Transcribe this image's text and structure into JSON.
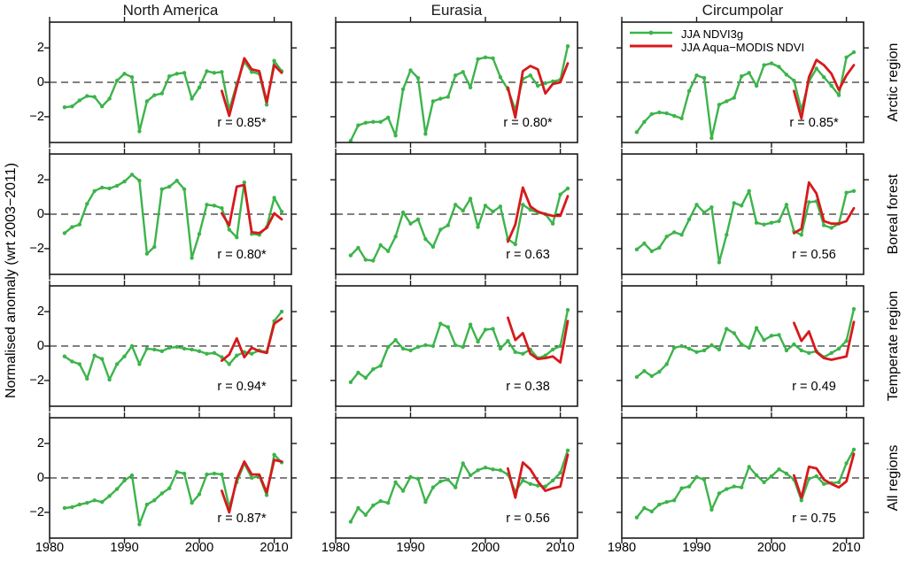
{
  "figure": {
    "title_columns": [
      "North America",
      "Eurasia",
      "Circumpolar"
    ],
    "row_labels": [
      "Arctic region",
      "Boreal forest",
      "Temperate region",
      "All regions"
    ],
    "ylabel": "Normalised anomaly (wrt 2003−2011)",
    "x_tick_labels": [
      "1980",
      "1990",
      "2000",
      "2010"
    ],
    "y_tick_labels": [
      "2",
      "0",
      "−2"
    ],
    "colors": {
      "ndvi3g": "#3cb44b",
      "modis": "#d7191c",
      "zero_line": "#000000",
      "frame": "#1a1a1a"
    },
    "legend": {
      "items": [
        {
          "series": "ndvi3g",
          "label": "JJA NDVI3g"
        },
        {
          "series": "modis",
          "label": "JJA Aqua−MODIS NDVI"
        }
      ]
    }
  },
  "chart_data": {
    "type": "line",
    "x_ticks": [
      1980,
      1990,
      2000,
      2010
    ],
    "y_ticks": [
      -2,
      0,
      2
    ],
    "xlim": [
      1980,
      2012.3
    ],
    "ylim": [
      -3.5,
      3.5
    ],
    "years_ndvi3g": [
      1982,
      1983,
      1984,
      1985,
      1986,
      1987,
      1988,
      1989,
      1990,
      1991,
      1992,
      1993,
      1994,
      1995,
      1996,
      1997,
      1998,
      1999,
      2000,
      2001,
      2002,
      2003,
      2004,
      2005,
      2006,
      2007,
      2008,
      2009,
      2010,
      2011
    ],
    "years_modis": [
      2003,
      2004,
      2005,
      2006,
      2007,
      2008,
      2009,
      2010,
      2011
    ],
    "zero_reference_line": 0,
    "panels": [
      {
        "col": "North America",
        "row": "Arctic region",
        "r_label": "r = 0.85*",
        "ndvi3g": [
          -1.45,
          -1.4,
          -1.05,
          -0.8,
          -0.85,
          -1.4,
          -0.95,
          0.1,
          0.5,
          0.3,
          -2.85,
          -1.1,
          -0.75,
          -0.65,
          0.35,
          0.5,
          0.55,
          -0.95,
          -0.3,
          0.65,
          0.55,
          0.6,
          -1.6,
          -0.1,
          1.2,
          0.6,
          0.5,
          -1.3,
          1.25,
          0.65
        ],
        "modis": [
          -0.5,
          -1.95,
          -0.25,
          1.4,
          0.75,
          0.65,
          -1.15,
          1.0,
          0.55
        ]
      },
      {
        "col": "Eurasia",
        "row": "Arctic region",
        "r_label": "r = 0.80*",
        "ndvi3g": [
          -3.4,
          -2.5,
          -2.35,
          -2.3,
          -2.3,
          -2.05,
          -3.1,
          -0.4,
          0.7,
          0.25,
          -3.0,
          -1.1,
          -0.95,
          -0.85,
          0.4,
          0.6,
          -0.3,
          1.35,
          1.45,
          1.4,
          0.3,
          -0.4,
          -1.6,
          0.2,
          0.4,
          -0.2,
          -0.05,
          0.05,
          0.15,
          2.1
        ],
        "modis": [
          -0.3,
          -2.05,
          0.65,
          0.95,
          0.75,
          -0.65,
          -0.1,
          0.0,
          1.1
        ]
      },
      {
        "col": "Circumpolar",
        "row": "Arctic region",
        "r_label": "r = 0.85*",
        "ndvi3g": [
          -2.9,
          -2.3,
          -1.85,
          -1.75,
          -1.8,
          -1.95,
          -2.1,
          -0.5,
          0.4,
          0.25,
          -3.25,
          -1.3,
          -1.1,
          -0.9,
          0.35,
          0.55,
          -0.2,
          1.0,
          1.1,
          0.9,
          0.45,
          0.1,
          -1.6,
          0.05,
          0.8,
          0.3,
          -0.2,
          -0.75,
          1.45,
          1.75
        ],
        "modis": [
          -0.5,
          -2.1,
          0.3,
          1.3,
          1.0,
          0.5,
          -0.45,
          0.4,
          1.0
        ]
      },
      {
        "col": "North America",
        "row": "Boreal forest",
        "r_label": "r = 0.80*",
        "ndvi3g": [
          -1.1,
          -0.75,
          -0.6,
          0.6,
          1.35,
          1.55,
          1.5,
          1.65,
          1.9,
          2.3,
          1.95,
          -2.3,
          -1.9,
          1.45,
          1.6,
          1.95,
          1.45,
          -2.55,
          -1.15,
          0.55,
          0.5,
          0.35,
          -0.9,
          -1.35,
          1.85,
          -1.15,
          -1.2,
          -0.75,
          0.95,
          0.15
        ],
        "modis": [
          0.05,
          -0.65,
          1.6,
          1.7,
          -1.05,
          -1.1,
          -0.8,
          0.05,
          -0.3
        ]
      },
      {
        "col": "Eurasia",
        "row": "Boreal forest",
        "r_label": "r = 0.63",
        "ndvi3g": [
          -2.4,
          -1.95,
          -2.65,
          -2.7,
          -1.8,
          -2.15,
          -1.3,
          0.1,
          -0.55,
          -0.3,
          -1.45,
          -1.9,
          -0.9,
          -0.65,
          0.55,
          0.2,
          0.9,
          -0.75,
          0.5,
          0.15,
          0.45,
          -1.45,
          -1.75,
          0.55,
          0.25,
          0.1,
          0.0,
          -0.55,
          1.15,
          1.5
        ],
        "modis": [
          -1.6,
          -0.6,
          1.55,
          0.45,
          0.15,
          0.0,
          -0.1,
          -0.1,
          1.05
        ]
      },
      {
        "col": "Circumpolar",
        "row": "Boreal forest",
        "r_label": "r = 0.56",
        "ndvi3g": [
          -2.05,
          -1.7,
          -2.15,
          -1.95,
          -1.3,
          -1.05,
          -1.2,
          -0.3,
          0.55,
          0.1,
          0.4,
          -2.8,
          -1.2,
          0.65,
          0.5,
          1.35,
          -0.5,
          -0.6,
          -0.5,
          -0.4,
          0.55,
          -1.0,
          -1.2,
          0.7,
          0.75,
          -0.65,
          -0.8,
          -0.55,
          1.25,
          1.35
        ],
        "modis": [
          -1.1,
          -0.85,
          1.85,
          1.2,
          -0.4,
          -0.55,
          -0.55,
          -0.4,
          0.35
        ]
      },
      {
        "col": "North America",
        "row": "Temperate region",
        "r_label": "r = 0.94*",
        "ndvi3g": [
          -0.6,
          -0.9,
          -1.05,
          -1.9,
          -0.55,
          -0.75,
          -1.95,
          -1.05,
          -0.6,
          0.0,
          -1.05,
          -0.15,
          -0.2,
          -0.3,
          -0.1,
          -0.05,
          -0.15,
          -0.2,
          -0.3,
          -0.45,
          -0.4,
          -0.65,
          -1.05,
          -0.55,
          -0.35,
          -0.45,
          -0.25,
          -0.35,
          1.45,
          2.0
        ],
        "modis": [
          -0.85,
          -0.5,
          0.45,
          -0.65,
          -0.1,
          -0.3,
          -0.4,
          1.3,
          1.6
        ]
      },
      {
        "col": "Eurasia",
        "row": "Temperate region",
        "r_label": "r = 0.38",
        "ndvi3g": [
          -2.1,
          -1.55,
          -1.85,
          -1.35,
          -1.15,
          -0.05,
          0.35,
          -0.15,
          -0.25,
          -0.05,
          0.05,
          0.0,
          1.3,
          1.1,
          0.05,
          -0.05,
          1.25,
          0.25,
          0.95,
          1.0,
          -0.15,
          0.3,
          -0.35,
          -0.45,
          -0.2,
          -0.7,
          -0.55,
          -0.2,
          0.0,
          2.1
        ],
        "modis": [
          1.65,
          0.35,
          0.75,
          -0.45,
          -0.75,
          -0.7,
          -0.6,
          -0.95,
          1.45
        ]
      },
      {
        "col": "Circumpolar",
        "row": "Temperate region",
        "r_label": "r = 0.49",
        "ndvi3g": [
          -1.8,
          -1.45,
          -1.75,
          -1.5,
          -1.05,
          -0.1,
          0.0,
          -0.15,
          -0.35,
          -0.25,
          0.05,
          -0.2,
          1.0,
          0.75,
          0.1,
          -0.1,
          1.05,
          0.35,
          0.6,
          0.65,
          -0.25,
          0.1,
          -0.25,
          -0.4,
          -0.3,
          -0.65,
          -0.4,
          -0.15,
          0.3,
          2.15
        ],
        "modis": [
          1.35,
          0.3,
          0.85,
          -0.35,
          -0.7,
          -0.8,
          -0.7,
          -0.6,
          1.4
        ]
      },
      {
        "col": "North America",
        "row": "All regions",
        "r_label": "r = 0.87*",
        "ndvi3g": [
          -1.75,
          -1.7,
          -1.55,
          -1.45,
          -1.3,
          -1.4,
          -1.05,
          -0.65,
          -0.15,
          0.15,
          -2.7,
          -1.55,
          -1.3,
          -0.9,
          -0.6,
          0.35,
          0.25,
          -1.45,
          -0.95,
          0.2,
          0.25,
          0.2,
          -1.7,
          -0.25,
          0.85,
          0.0,
          0.1,
          -1.0,
          1.35,
          0.9
        ],
        "modis": [
          -0.75,
          -2.0,
          -0.05,
          0.95,
          0.2,
          0.2,
          -0.85,
          1.05,
          0.95
        ]
      },
      {
        "col": "Eurasia",
        "row": "All regions",
        "r_label": "r = 0.56",
        "ndvi3g": [
          -2.55,
          -1.75,
          -2.15,
          -1.6,
          -1.35,
          -1.45,
          -0.25,
          -0.75,
          0.05,
          -0.05,
          -1.4,
          -0.55,
          -0.2,
          -0.1,
          -0.55,
          0.85,
          0.15,
          0.45,
          0.6,
          0.5,
          0.45,
          0.2,
          -0.8,
          -0.15,
          -0.35,
          -0.45,
          -0.5,
          -0.15,
          0.3,
          1.6
        ],
        "modis": [
          0.55,
          -1.15,
          0.9,
          0.5,
          -0.2,
          -0.75,
          -0.6,
          -0.5,
          1.35
        ]
      },
      {
        "col": "Circumpolar",
        "row": "All regions",
        "r_label": "r = 0.75",
        "ndvi3g": [
          -2.3,
          -1.75,
          -1.95,
          -1.55,
          -1.4,
          -1.3,
          -0.6,
          -0.5,
          0.05,
          -0.1,
          -1.85,
          -0.9,
          -0.65,
          -0.5,
          -0.55,
          0.65,
          0.15,
          -0.25,
          0.1,
          0.5,
          0.25,
          -0.1,
          -1.3,
          -0.05,
          0.1,
          -0.35,
          -0.3,
          -0.25,
          0.85,
          1.65
        ],
        "modis": [
          0.15,
          -1.15,
          0.65,
          0.55,
          -0.1,
          -0.35,
          -0.55,
          -0.2,
          1.4
        ]
      }
    ]
  }
}
